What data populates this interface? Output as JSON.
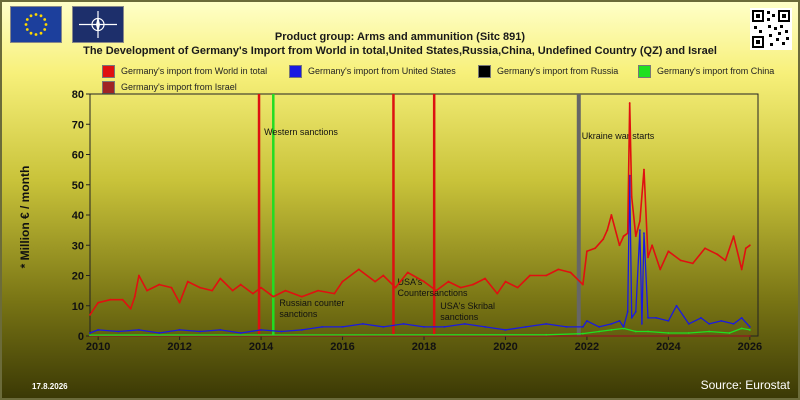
{
  "header": {
    "title": "Product group: Arms and ammunition (Sitc 891)",
    "subtitle": "The Development of Germany's Import from World in total,United States,Russia,China, Undefined Country (QZ) and Israel"
  },
  "footer": {
    "date": "17.8.2026",
    "source": "Source: Eurostat"
  },
  "colors": {
    "world": "#e01010",
    "us": "#1a1ae0",
    "russia": "#000000",
    "china": "#20e020",
    "israel": "#a02424"
  },
  "chart_data": {
    "type": "line",
    "title": "Product group: Arms and ammunition (Sitc 891)",
    "ylabel": "* Million € / month",
    "xlabel": "",
    "xlim": [
      2009.8,
      2026.2
    ],
    "ylim": [
      0,
      80
    ],
    "yticks": [
      0,
      10,
      20,
      30,
      40,
      50,
      60,
      70,
      80
    ],
    "xticks": [
      2010,
      2012,
      2014,
      2016,
      2018,
      2020,
      2022,
      2024,
      2026
    ],
    "grid": false,
    "legend_position": "top",
    "series": [
      {
        "name": "Germany's import from World in total",
        "color": "#e01010",
        "x": [
          2009.8,
          2010.0,
          2010.3,
          2010.6,
          2010.8,
          2010.9,
          2011.0,
          2011.2,
          2011.5,
          2011.8,
          2012.0,
          2012.2,
          2012.5,
          2012.8,
          2013.0,
          2013.3,
          2013.5,
          2013.8,
          2014.0,
          2014.3,
          2014.6,
          2015.0,
          2015.4,
          2015.8,
          2016.0,
          2016.4,
          2016.8,
          2017.0,
          2017.3,
          2017.6,
          2018.0,
          2018.3,
          2018.6,
          2018.9,
          2019.2,
          2019.5,
          2019.8,
          2020.0,
          2020.3,
          2020.6,
          2021.0,
          2021.3,
          2021.6,
          2021.9,
          2022.0,
          2022.2,
          2022.4,
          2022.5,
          2022.6,
          2022.8,
          2022.9,
          2023.0,
          2023.05,
          2023.1,
          2023.2,
          2023.3,
          2023.4,
          2023.5,
          2023.6,
          2023.8,
          2024.0,
          2024.3,
          2024.6,
          2024.9,
          2025.2,
          2025.4,
          2025.6,
          2025.8,
          2025.9,
          2026.0
        ],
        "values": [
          7,
          11,
          12,
          12,
          9,
          13,
          20,
          15,
          17,
          16,
          11,
          18,
          16,
          15,
          19,
          15,
          17,
          14,
          16,
          13,
          15,
          13,
          15,
          14,
          18,
          22,
          18,
          20,
          16,
          21,
          18,
          15,
          18,
          16,
          17,
          19,
          14,
          18,
          16,
          20,
          20,
          22,
          21,
          17,
          28,
          29,
          32,
          35,
          40,
          30,
          33,
          34,
          77,
          46,
          33,
          38,
          55,
          26,
          30,
          22,
          28,
          25,
          24,
          29,
          27,
          25,
          33,
          22,
          29,
          30
        ]
      },
      {
        "name": "Germany's import from United States",
        "color": "#1a1ae0",
        "x": [
          2009.8,
          2010.0,
          2010.5,
          2011.0,
          2011.5,
          2012.0,
          2012.5,
          2013.0,
          2013.5,
          2014.0,
          2014.5,
          2015.0,
          2015.5,
          2016.0,
          2016.5,
          2017.0,
          2017.5,
          2018.0,
          2018.5,
          2019.0,
          2019.5,
          2020.0,
          2020.5,
          2021.0,
          2021.5,
          2021.9,
          2022.0,
          2022.3,
          2022.6,
          2022.8,
          2022.9,
          2023.0,
          2023.05,
          2023.1,
          2023.2,
          2023.3,
          2023.35,
          2023.4,
          2023.5,
          2023.7,
          2024.0,
          2024.2,
          2024.5,
          2024.8,
          2025.0,
          2025.3,
          2025.6,
          2025.8,
          2026.0
        ],
        "values": [
          1,
          2,
          1.5,
          2,
          1,
          2,
          1.5,
          2,
          1,
          2,
          1.5,
          2,
          3,
          3,
          4,
          3,
          4,
          3,
          3,
          4,
          3,
          2,
          3,
          4,
          3,
          3,
          5,
          3,
          4,
          5,
          3,
          8,
          53,
          6,
          8,
          35,
          4,
          34,
          6,
          6,
          5,
          10,
          4,
          6,
          4,
          5,
          4,
          6,
          3
        ]
      },
      {
        "name": "Germany's import from Russia",
        "color": "#000000",
        "x": [
          2009.8,
          2026.0
        ],
        "values": [
          0,
          0
        ]
      },
      {
        "name": "Germany's import from China",
        "color": "#20e020",
        "x": [
          2009.8,
          2021.0,
          2021.9,
          2022.3,
          2022.6,
          2022.9,
          2023.2,
          2023.5,
          2024.0,
          2024.5,
          2025.0,
          2025.5,
          2025.8,
          2026.0
        ],
        "values": [
          0.3,
          0.4,
          0.8,
          1.5,
          2,
          2.5,
          1.5,
          1.5,
          1,
          1,
          1.5,
          1,
          2.5,
          2
        ]
      },
      {
        "name": "Germany's import from Israel",
        "color": "#a02424",
        "x": [
          2009.8,
          2026.0
        ],
        "values": [
          0,
          0
        ]
      }
    ],
    "events": [
      {
        "x": 2013.95,
        "color": "#dd1111",
        "label": ""
      },
      {
        "x": 2014.3,
        "color": "#22dd22",
        "label": "Western sanctions"
      },
      {
        "x": 2017.25,
        "color": "#dd1111",
        "label": ""
      },
      {
        "x": 2018.25,
        "color": "#dd1111",
        "label": ""
      },
      {
        "x": 2021.8,
        "color": "#666666",
        "label": "Ukraine war starts"
      }
    ],
    "annotations": [
      "Russian counter sanctions",
      "USA's Countersanctions",
      "USA's Skribal sanctions"
    ]
  }
}
